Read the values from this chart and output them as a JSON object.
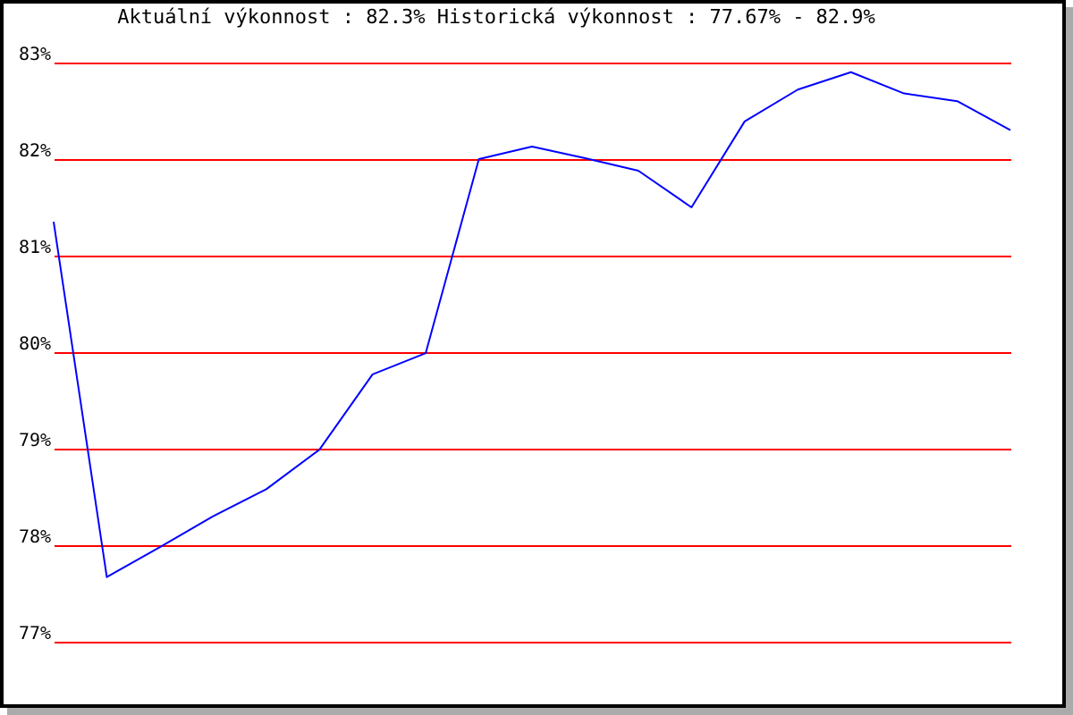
{
  "chart_data": {
    "type": "line",
    "title": "Aktuální výkonnost : 82.3%  Historická výkonnost : 77.67% - 82.9%",
    "categories": [
      null,
      null,
      null,
      null,
      null,
      null,
      null,
      null,
      null,
      null,
      null,
      null,
      null,
      null,
      null,
      null,
      null,
      null,
      null
    ],
    "series": [
      {
        "color": "#0000ff",
        "values": [
          81.35,
          77.67,
          77.98,
          78.3,
          78.58,
          78.99,
          79.77,
          79.99,
          82.0,
          82.13,
          82.01,
          81.88,
          81.5,
          82.39,
          82.72,
          82.9,
          82.68,
          82.6,
          82.3
        ]
      }
    ],
    "ylim": [
      77,
      83
    ],
    "yticks": [
      {
        "value": 77,
        "label": "77%"
      },
      {
        "value": 78,
        "label": "78%"
      },
      {
        "value": 79,
        "label": "79%"
      },
      {
        "value": 80,
        "label": "80%"
      },
      {
        "value": 81,
        "label": "81%"
      },
      {
        "value": 82,
        "label": "82%"
      },
      {
        "value": 83,
        "label": "83%"
      }
    ],
    "grid": "y",
    "tick_labels": "y"
  }
}
